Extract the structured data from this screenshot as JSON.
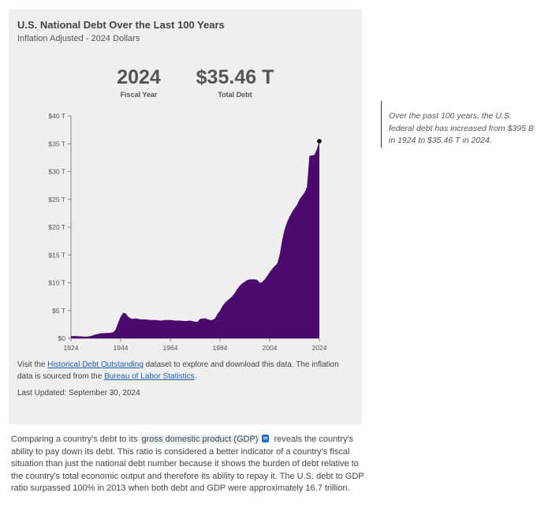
{
  "title": "U.S. National Debt Over the Last 100 Years",
  "subtitle": "Inflation Adjusted - 2024 Dollars",
  "stats": [
    {
      "value": "2024",
      "label": "Fiscal Year"
    },
    {
      "value": "$35.46 T",
      "label": "Total Debt"
    }
  ],
  "source": {
    "prefix": "Visit the ",
    "link1": "Historical Debt Outstanding",
    "middle": " dataset to explore and download this data. The inflation data is sourced from the ",
    "link2": "Bureau of Labor Statistics",
    "suffix": "."
  },
  "updated": "Last Updated: September 30, 2024",
  "callout": "Over the past 100 years, the U.S. federal debt has increased from $395 B in 1924 to $35.46 T in 2024.",
  "paragraph": {
    "before": "Comparing a country's debt to its ",
    "term": "gross domestic product (GDP)",
    "after": " reveals the country's ability to pay down its debt. This ratio is considered a better indicator of a country's fiscal situation than just the national debt number because it shows the burden of debt relative to the country's total economic output and therefore its ability to repay it. The U.S. debt to GDP ratio surpassed 100% in 2013 when both debt and GDP were approximately 16.7 trillion."
  },
  "colors": {
    "area": "#4b0b6e",
    "marker": "#000000",
    "link": "#1f5fa8"
  },
  "chart_data": {
    "type": "area",
    "title": "U.S. National Debt Over the Last 100 Years",
    "subtitle": "Inflation Adjusted - 2024 Dollars",
    "xlabel": "",
    "ylabel": "",
    "xlim": [
      1924,
      2024
    ],
    "ylim": [
      0,
      40
    ],
    "x_ticks": [
      1924,
      1944,
      1964,
      1984,
      2004,
      2024
    ],
    "y_ticks": [
      0,
      5,
      10,
      15,
      20,
      25,
      30,
      35,
      40
    ],
    "y_tick_labels": [
      "$0",
      "$5 T",
      "$10 T",
      "$15 T",
      "$20 T",
      "$25 T",
      "$30 T",
      "$35 T",
      "$40 T"
    ],
    "grid": false,
    "legend": "none",
    "x": [
      1924,
      1926,
      1928,
      1930,
      1932,
      1934,
      1936,
      1938,
      1940,
      1941,
      1942,
      1943,
      1944,
      1945,
      1946,
      1947,
      1948,
      1949,
      1950,
      1952,
      1954,
      1956,
      1958,
      1960,
      1962,
      1964,
      1966,
      1968,
      1970,
      1972,
      1974,
      1975,
      1976,
      1978,
      1980,
      1981,
      1982,
      1983,
      1984,
      1985,
      1986,
      1987,
      1988,
      1989,
      1990,
      1991,
      1992,
      1993,
      1994,
      1995,
      1996,
      1997,
      1998,
      1999,
      2000,
      2001,
      2002,
      2003,
      2004,
      2005,
      2006,
      2007,
      2008,
      2009,
      2010,
      2011,
      2012,
      2013,
      2014,
      2015,
      2016,
      2017,
      2018,
      2019,
      2020,
      2021,
      2022,
      2023,
      2024
    ],
    "values": [
      0.395,
      0.4,
      0.35,
      0.3,
      0.4,
      0.7,
      0.9,
      0.95,
      1.0,
      1.1,
      1.6,
      2.8,
      3.9,
      4.6,
      4.5,
      3.9,
      3.6,
      3.5,
      3.6,
      3.4,
      3.4,
      3.3,
      3.3,
      3.2,
      3.3,
      3.3,
      3.2,
      3.2,
      3.1,
      3.2,
      3.0,
      3.0,
      3.5,
      3.6,
      3.3,
      3.3,
      3.6,
      4.4,
      5.0,
      5.8,
      6.4,
      6.8,
      7.2,
      7.6,
      8.2,
      8.9,
      9.5,
      9.9,
      10.2,
      10.5,
      10.6,
      10.6,
      10.6,
      10.5,
      10.0,
      10.1,
      10.6,
      11.2,
      11.9,
      12.5,
      13.0,
      13.4,
      15.0,
      17.6,
      19.6,
      20.9,
      21.9,
      22.7,
      23.4,
      24.0,
      25.0,
      25.6,
      26.2,
      27.2,
      32.8,
      32.9,
      33.0,
      34.0,
      35.46
    ]
  }
}
